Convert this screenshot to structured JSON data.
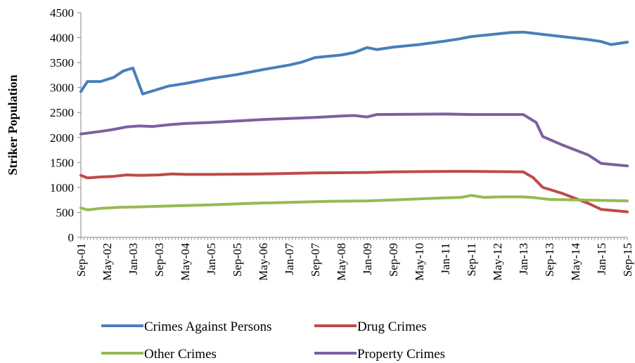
{
  "chart_data": {
    "type": "line",
    "title": "",
    "xlabel": "",
    "ylabel": "Striker Population",
    "ylim": [
      0,
      4500
    ],
    "yticks": [
      0,
      500,
      1000,
      1500,
      2000,
      2500,
      3000,
      3500,
      4000,
      4500
    ],
    "grid": false,
    "legend_position": "bottom",
    "x_start": "Sep-01",
    "x_end": "Sep-15",
    "x_tick_labels": [
      "Sep-01",
      "May-02",
      "Jan-03",
      "Sep-03",
      "May-04",
      "Jan-05",
      "Sep-05",
      "May-06",
      "Jan-07",
      "Sep-07",
      "May-08",
      "Jan-09",
      "Sep-09",
      "May-10",
      "Jan-11",
      "Sep-11",
      "May-12",
      "Jan-13",
      "Sep-13",
      "May-14",
      "Jan-15",
      "Sep-15"
    ],
    "series": [
      {
        "name": "Crimes Against Persons",
        "color": "#4A7EBB",
        "points": [
          [
            "Sep-01",
            2920
          ],
          [
            "Nov-01",
            3120
          ],
          [
            "Mar-02",
            3120
          ],
          [
            "Jul-02",
            3200
          ],
          [
            "Oct-02",
            3330
          ],
          [
            "Jan-03",
            3390
          ],
          [
            "Apr-03",
            2870
          ],
          [
            "Jul-03",
            2930
          ],
          [
            "Dec-03",
            3030
          ],
          [
            "May-04",
            3080
          ],
          [
            "Jan-05",
            3180
          ],
          [
            "Sep-05",
            3260
          ],
          [
            "May-06",
            3360
          ],
          [
            "Jan-07",
            3450
          ],
          [
            "May-07",
            3510
          ],
          [
            "Sep-07",
            3600
          ],
          [
            "May-08",
            3650
          ],
          [
            "Sep-08",
            3700
          ],
          [
            "Jan-09",
            3800
          ],
          [
            "Apr-09",
            3760
          ],
          [
            "Sep-09",
            3810
          ],
          [
            "May-10",
            3860
          ],
          [
            "Jan-11",
            3930
          ],
          [
            "May-11",
            3970
          ],
          [
            "Sep-11",
            4020
          ],
          [
            "Mar-12",
            4060
          ],
          [
            "Sep-12",
            4100
          ],
          [
            "Jan-13",
            4110
          ],
          [
            "May-13",
            4080
          ],
          [
            "Jan-14",
            4020
          ],
          [
            "Sep-14",
            3960
          ],
          [
            "Jan-15",
            3920
          ],
          [
            "Apr-15",
            3860
          ],
          [
            "Sep-15",
            3910
          ]
        ]
      },
      {
        "name": "Drug Crimes",
        "color": "#BE4B48",
        "points": [
          [
            "Sep-01",
            1240
          ],
          [
            "Nov-01",
            1190
          ],
          [
            "Mar-02",
            1210
          ],
          [
            "Jul-02",
            1220
          ],
          [
            "Nov-02",
            1250
          ],
          [
            "Mar-03",
            1240
          ],
          [
            "Sep-03",
            1250
          ],
          [
            "Jan-04",
            1270
          ],
          [
            "May-04",
            1260
          ],
          [
            "Jan-05",
            1260
          ],
          [
            "May-06",
            1270
          ],
          [
            "Sep-07",
            1290
          ],
          [
            "Jan-09",
            1300
          ],
          [
            "Sep-09",
            1310
          ],
          [
            "Jan-11",
            1320
          ],
          [
            "Sep-11",
            1320
          ],
          [
            "Jan-13",
            1310
          ],
          [
            "Apr-13",
            1200
          ],
          [
            "Jul-13",
            1000
          ],
          [
            "Jan-14",
            880
          ],
          [
            "May-14",
            780
          ],
          [
            "Sep-14",
            680
          ],
          [
            "Jan-15",
            560
          ],
          [
            "Sep-15",
            510
          ]
        ]
      },
      {
        "name": "Other Crimes",
        "color": "#98B954",
        "points": [
          [
            "Sep-01",
            590
          ],
          [
            "Nov-01",
            550
          ],
          [
            "Mar-02",
            580
          ],
          [
            "Sep-02",
            600
          ],
          [
            "Mar-03",
            610
          ],
          [
            "Jan-04",
            630
          ],
          [
            "Jan-05",
            650
          ],
          [
            "Jan-06",
            680
          ],
          [
            "Jan-07",
            700
          ],
          [
            "Jan-08",
            720
          ],
          [
            "Jan-09",
            730
          ],
          [
            "Sep-09",
            750
          ],
          [
            "May-10",
            770
          ],
          [
            "Jan-11",
            790
          ],
          [
            "Jun-11",
            800
          ],
          [
            "Sep-11",
            840
          ],
          [
            "Jan-12",
            800
          ],
          [
            "Jun-12",
            810
          ],
          [
            "Jan-13",
            810
          ],
          [
            "May-13",
            790
          ],
          [
            "Sep-13",
            760
          ],
          [
            "Jan-15",
            740
          ],
          [
            "Sep-15",
            730
          ]
        ]
      },
      {
        "name": "Property Crimes",
        "color": "#7D60A0",
        "points": [
          [
            "Sep-01",
            2070
          ],
          [
            "Mar-02",
            2120
          ],
          [
            "Jul-02",
            2160
          ],
          [
            "Nov-02",
            2210
          ],
          [
            "Mar-03",
            2230
          ],
          [
            "Jul-03",
            2220
          ],
          [
            "Jan-04",
            2260
          ],
          [
            "May-04",
            2280
          ],
          [
            "Jan-05",
            2300
          ],
          [
            "May-06",
            2360
          ],
          [
            "Jan-07",
            2380
          ],
          [
            "Sep-07",
            2400
          ],
          [
            "May-08",
            2430
          ],
          [
            "Sep-08",
            2440
          ],
          [
            "Jan-09",
            2410
          ],
          [
            "Apr-09",
            2460
          ],
          [
            "Jan-11",
            2470
          ],
          [
            "Sep-11",
            2460
          ],
          [
            "May-12",
            2460
          ],
          [
            "Jan-13",
            2460
          ],
          [
            "May-13",
            2300
          ],
          [
            "Jul-13",
            2020
          ],
          [
            "Jan-14",
            1850
          ],
          [
            "Sep-14",
            1650
          ],
          [
            "Jan-15",
            1480
          ],
          [
            "Sep-15",
            1430
          ]
        ]
      }
    ]
  }
}
